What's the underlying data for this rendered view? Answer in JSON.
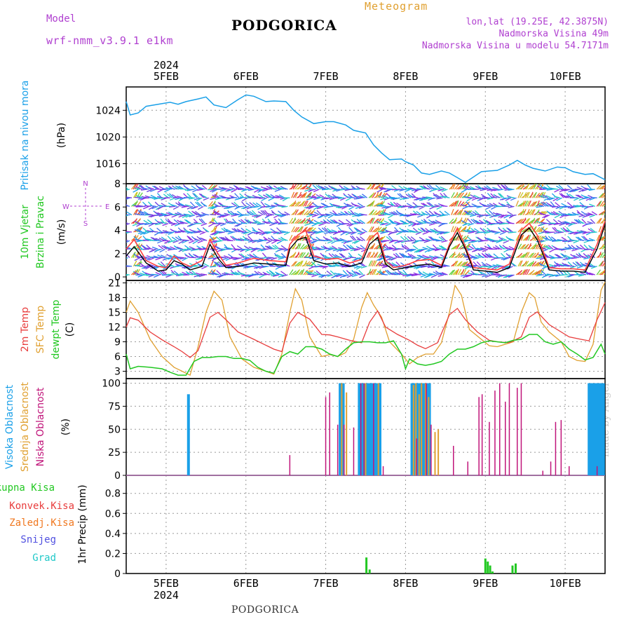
{
  "header": {
    "model_label": "Model",
    "model_name": "wrf-nmm_v3.9.1 e1km",
    "station": "PODGORICA",
    "product": "Meteogram",
    "lonlat": "lon,lat (19.25E, 42.3875N)",
    "elevation": "Nadmorska Visina 49m",
    "model_elevation": "Nadmorska Visina u modelu 54.7171m",
    "footer_station": "PODGORICA",
    "credit": "made by Angel"
  },
  "colors": {
    "pressure": "#1aa0e8",
    "t2m": "#e83c3c",
    "sfc": "#e0a030",
    "dewpt": "#22c822",
    "high": "#1aa0e8",
    "mid": "#e0a030",
    "low": "#c0147a",
    "total": "#22c822",
    "conv": "#e83c3c",
    "frozen": "#f07820",
    "snow": "#5050e0",
    "hail": "#20c8c8",
    "magenta": "#b040d0"
  },
  "chart_data": [
    {
      "type": "line",
      "panel": "pressure",
      "title": "",
      "ylabel": "Pritisak na nivou mora",
      "unit": "(hPa)",
      "ylim": [
        1013,
        1027.5
      ],
      "yticks": [
        1016,
        1020,
        1024
      ],
      "x_year_label": "2024",
      "x_tick_labels": [
        "5FEB",
        "6FEB",
        "7FEB",
        "8FEB",
        "9FEB",
        "10FEB"
      ],
      "series": [
        {
          "x": [
            4.5,
            4.55,
            4.65,
            4.75,
            4.9,
            5.05,
            5.15,
            5.25,
            5.4,
            5.5,
            5.6,
            5.75,
            5.9,
            6.0,
            6.1,
            6.25,
            6.35,
            6.5,
            6.6,
            6.7,
            6.85,
            7.0,
            7.1,
            7.25,
            7.35,
            7.5,
            7.6,
            7.7,
            7.8,
            7.95,
            8.0,
            8.1,
            8.2,
            8.3,
            8.45,
            8.55,
            8.65,
            8.75,
            8.85,
            8.95,
            9.05,
            9.15,
            9.3,
            9.4,
            9.5,
            9.6,
            9.75,
            9.9,
            10.0,
            10.1,
            10.25,
            10.35,
            10.5
          ],
          "y": [
            1025.3,
            1023.3,
            1023.6,
            1024.6,
            1024.9,
            1025.2,
            1024.9,
            1025.3,
            1025.7,
            1026.0,
            1024.8,
            1024.4,
            1025.6,
            1026.3,
            1026.1,
            1025.3,
            1025.4,
            1025.3,
            1024.0,
            1023.0,
            1022.0,
            1022.3,
            1022.3,
            1021.8,
            1021.0,
            1020.6,
            1018.8,
            1017.6,
            1016.6,
            1016.7,
            1016.3,
            1015.8,
            1014.6,
            1014.4,
            1014.9,
            1014.6,
            1013.9,
            1013.2,
            1014.0,
            1014.8,
            1014.9,
            1015.0,
            1015.8,
            1016.5,
            1015.8,
            1015.3,
            1014.9,
            1015.5,
            1015.4,
            1014.8,
            1014.4,
            1014.5,
            1013.6
          ]
        }
      ]
    },
    {
      "type": "line",
      "panel": "wind",
      "ylabel_1": "10m Vjetar",
      "ylabel_2": "Brzina i Pravac",
      "unit": "(m/s)",
      "ylim": [
        -0.3,
        8
      ],
      "yticks": [
        0,
        2,
        4,
        6,
        8
      ],
      "compass": {
        "n": "N",
        "e": "E",
        "w": "W",
        "s": "S"
      },
      "series": [
        {
          "x": [
            4.5,
            4.6,
            4.75,
            4.9,
            5.0,
            5.1,
            5.2,
            5.3,
            5.45,
            5.55,
            5.65,
            5.75,
            5.9,
            6.1,
            6.3,
            6.5,
            6.55,
            6.65,
            6.75,
            6.85,
            7.0,
            7.15,
            7.3,
            7.45,
            7.55,
            7.65,
            7.75,
            7.85,
            8.0,
            8.15,
            8.3,
            8.45,
            8.55,
            8.65,
            8.75,
            8.85,
            9.0,
            9.15,
            9.3,
            9.45,
            9.55,
            9.65,
            9.8,
            9.95,
            10.1,
            10.25,
            10.4,
            10.5
          ],
          "y": [
            1.8,
            2.6,
            1.2,
            0.5,
            0.6,
            1.4,
            1.1,
            0.6,
            0.9,
            2.8,
            1.6,
            0.8,
            0.9,
            1.2,
            1.1,
            1.0,
            2.4,
            3.2,
            3.4,
            1.4,
            1.1,
            1.2,
            0.9,
            1.2,
            2.8,
            3.4,
            1.1,
            0.6,
            0.8,
            1.0,
            1.1,
            0.8,
            2.6,
            3.8,
            2.4,
            0.6,
            0.5,
            0.4,
            0.8,
            3.6,
            4.2,
            3.2,
            0.6,
            0.5,
            0.5,
            0.4,
            2.4,
            4.5
          ]
        },
        {
          "x": [
            4.5,
            4.6,
            4.75,
            4.9,
            5.0,
            5.1,
            5.2,
            5.3,
            5.45,
            5.55,
            5.65,
            5.75,
            5.9,
            6.1,
            6.3,
            6.5,
            6.55,
            6.65,
            6.75,
            6.85,
            7.0,
            7.15,
            7.3,
            7.45,
            7.55,
            7.65,
            7.75,
            7.85,
            8.0,
            8.15,
            8.3,
            8.45,
            8.55,
            8.65,
            8.75,
            8.85,
            9.0,
            9.15,
            9.3,
            9.45,
            9.55,
            9.65,
            9.8,
            9.95,
            10.1,
            10.25,
            10.4,
            10.5
          ],
          "y": [
            2.4,
            3.2,
            1.4,
            0.9,
            0.8,
            1.8,
            1.2,
            0.9,
            1.4,
            3.2,
            2.0,
            1.0,
            1.2,
            1.6,
            1.4,
            1.3,
            2.8,
            3.6,
            4.0,
            1.8,
            1.5,
            1.6,
            1.2,
            1.5,
            3.2,
            3.8,
            1.4,
            0.8,
            1.0,
            1.4,
            1.5,
            1.0,
            2.8,
            4.2,
            2.6,
            0.8,
            0.7,
            0.6,
            1.1,
            4.0,
            4.6,
            3.6,
            0.8,
            0.7,
            0.7,
            0.6,
            2.8,
            4.8
          ]
        }
      ]
    },
    {
      "type": "line",
      "panel": "temperature",
      "ylabel_1": "2m Temp",
      "ylabel_2": "SFC Temp",
      "ylabel_3": "dewpt Temp",
      "unit": "(C)",
      "ylim": [
        1.5,
        21.5
      ],
      "yticks": [
        3,
        6,
        9,
        12,
        15,
        18,
        21
      ],
      "series": [
        {
          "name": "2m Temp",
          "x": [
            4.5,
            4.55,
            4.65,
            4.8,
            4.95,
            5.1,
            5.2,
            5.3,
            5.4,
            5.55,
            5.65,
            5.75,
            5.9,
            6.1,
            6.25,
            6.35,
            6.45,
            6.55,
            6.65,
            6.8,
            6.95,
            7.05,
            7.15,
            7.3,
            7.45,
            7.55,
            7.65,
            7.75,
            7.9,
            8.05,
            8.15,
            8.25,
            8.4,
            8.55,
            8.65,
            8.75,
            8.9,
            9.05,
            9.15,
            9.3,
            9.45,
            9.55,
            9.65,
            9.8,
            9.95,
            10.05,
            10.2,
            10.3,
            10.4,
            10.5
          ],
          "y": [
            12.0,
            13.9,
            13.4,
            11.0,
            9.4,
            8.0,
            7.0,
            5.8,
            7.2,
            14.0,
            15.0,
            13.5,
            11.0,
            9.5,
            8.3,
            7.5,
            7.0,
            12.8,
            15.0,
            13.6,
            10.5,
            10.4,
            10.0,
            9.3,
            8.8,
            13.0,
            15.3,
            12.0,
            10.5,
            9.3,
            8.3,
            7.6,
            8.8,
            14.5,
            15.8,
            13.5,
            11.0,
            9.3,
            9.0,
            8.8,
            10.0,
            14.0,
            15.1,
            12.5,
            11.0,
            10.0,
            9.5,
            9.2,
            13.5,
            17.0
          ]
        },
        {
          "name": "SFC Temp",
          "x": [
            4.5,
            4.55,
            4.65,
            4.8,
            4.95,
            5.1,
            5.2,
            5.3,
            5.4,
            5.5,
            5.6,
            5.7,
            5.8,
            5.95,
            6.1,
            6.25,
            6.35,
            6.45,
            6.55,
            6.62,
            6.7,
            6.8,
            6.95,
            7.05,
            7.15,
            7.25,
            7.35,
            7.45,
            7.52,
            7.6,
            7.7,
            7.8,
            7.95,
            8.05,
            8.15,
            8.25,
            8.35,
            8.45,
            8.55,
            8.62,
            8.7,
            8.8,
            8.95,
            9.05,
            9.15,
            9.25,
            9.35,
            9.45,
            9.55,
            9.62,
            9.7,
            9.8,
            9.95,
            10.05,
            10.15,
            10.25,
            10.35,
            10.45,
            10.5
          ],
          "y": [
            15.0,
            17.3,
            15.0,
            9.5,
            6.0,
            3.8,
            3.0,
            2.2,
            8.0,
            15.0,
            19.3,
            17.5,
            10.0,
            5.5,
            3.8,
            3.0,
            2.4,
            6.5,
            15.0,
            19.8,
            17.5,
            10.0,
            6.0,
            6.4,
            6.0,
            6.8,
            9.5,
            16.0,
            19.0,
            16.5,
            14.0,
            9.0,
            6.5,
            4.5,
            5.8,
            6.5,
            6.5,
            8.8,
            15.0,
            20.5,
            18.5,
            11.5,
            9.5,
            8.2,
            8.0,
            8.5,
            9.0,
            15.0,
            19.0,
            18.0,
            13.0,
            11.0,
            9.0,
            6.0,
            5.2,
            5.0,
            8.5,
            19.5,
            21.2
          ]
        },
        {
          "name": "dewpt Temp",
          "x": [
            4.5,
            4.55,
            4.65,
            4.8,
            4.95,
            5.05,
            5.15,
            5.25,
            5.35,
            5.45,
            5.55,
            5.65,
            5.75,
            5.85,
            5.95,
            6.05,
            6.15,
            6.25,
            6.35,
            6.45,
            6.55,
            6.65,
            6.75,
            6.85,
            6.95,
            7.05,
            7.15,
            7.25,
            7.35,
            7.45,
            7.55,
            7.65,
            7.75,
            7.85,
            7.95,
            8.0,
            8.05,
            8.15,
            8.25,
            8.35,
            8.45,
            8.55,
            8.65,
            8.75,
            8.85,
            8.95,
            9.05,
            9.15,
            9.25,
            9.35,
            9.45,
            9.55,
            9.65,
            9.75,
            9.85,
            9.95,
            10.05,
            10.15,
            10.25,
            10.35,
            10.45,
            10.5
          ],
          "y": [
            6.5,
            3.5,
            4.0,
            3.8,
            3.5,
            2.8,
            2.2,
            2.2,
            5.0,
            5.8,
            5.8,
            6.0,
            6.0,
            5.6,
            5.6,
            5.2,
            3.8,
            3.0,
            2.6,
            6.0,
            7.0,
            6.5,
            8.0,
            8.0,
            7.5,
            6.5,
            6.0,
            7.5,
            8.8,
            9.0,
            9.0,
            8.8,
            8.8,
            9.2,
            6.5,
            3.5,
            5.5,
            4.5,
            4.2,
            4.5,
            5.0,
            6.5,
            7.5,
            7.5,
            8.0,
            8.8,
            9.2,
            9.0,
            8.8,
            9.3,
            9.5,
            10.5,
            10.5,
            9.0,
            8.5,
            9.0,
            7.5,
            6.5,
            5.3,
            5.8,
            8.5,
            6.5
          ]
        }
      ]
    },
    {
      "type": "bar",
      "panel": "clouds",
      "ylabel_1": "Visoka Oblacnost",
      "ylabel_2": "Srednja Oblacnost",
      "ylabel_3": "Niska Oblacnost",
      "unit": "(%)",
      "ylim": [
        0,
        105
      ],
      "yticks": [
        0,
        25,
        50,
        75,
        100
      ],
      "series": [
        {
          "name": "Visoka Oblacnost",
          "x": [
            5.28,
            7.18,
            7.2,
            7.22,
            7.42,
            7.44,
            7.46,
            7.48,
            7.5,
            7.52,
            7.54,
            7.56,
            7.58,
            7.6,
            7.62,
            7.64,
            7.68,
            8.08,
            8.1,
            8.12,
            8.14,
            8.16,
            8.18,
            8.2,
            8.22,
            8.24,
            8.26,
            8.28,
            8.3,
            10.3,
            10.32,
            10.34,
            10.36,
            10.38,
            10.4,
            10.42,
            10.44,
            10.46,
            10.48
          ],
          "y": [
            88,
            100,
            100,
            100,
            100,
            100,
            100,
            100,
            100,
            100,
            100,
            100,
            100,
            100,
            100,
            100,
            100,
            100,
            100,
            100,
            100,
            100,
            100,
            100,
            100,
            100,
            100,
            100,
            100,
            100,
            100,
            100,
            100,
            100,
            100,
            100,
            100,
            100,
            100
          ]
        },
        {
          "name": "Srednja Oblacnost",
          "x": [
            7.2,
            7.26,
            7.5,
            7.66,
            8.1,
            8.13,
            8.17,
            8.2,
            8.25,
            8.29,
            8.37,
            8.41
          ],
          "y": [
            100,
            90,
            100,
            100,
            98,
            100,
            88,
            100,
            100,
            85,
            47,
            50
          ]
        },
        {
          "name": "Niska Oblacnost",
          "x": [
            6.55,
            7.0,
            7.05,
            7.15,
            7.23,
            7.35,
            7.44,
            7.48,
            7.6,
            7.72,
            8.14,
            8.26,
            8.32,
            8.6,
            8.78,
            8.92,
            8.96,
            9.05,
            9.12,
            9.18,
            9.25,
            9.3,
            9.4,
            9.45,
            9.72,
            9.82,
            9.88,
            9.95,
            10.05,
            10.4
          ],
          "y": [
            22,
            85,
            90,
            55,
            55,
            52,
            100,
            100,
            100,
            10,
            40,
            100,
            55,
            32,
            15,
            85,
            88,
            58,
            92,
            100,
            80,
            100,
            95,
            100,
            5,
            15,
            58,
            60,
            10,
            10
          ]
        }
      ]
    },
    {
      "type": "bar",
      "panel": "precip",
      "ylabel_1": "1hr Precip (mm)",
      "ylim": [
        0,
        0.98
      ],
      "yticks": [
        0,
        0.2,
        0.4,
        0.6,
        0.8
      ],
      "legend": [
        "Ukupna Kisa",
        "Konvek.Kisa",
        "Zaledj.Kisa",
        "Snijeg",
        "Grad"
      ],
      "series": [
        {
          "name": "Ukupna Kisa",
          "x": [
            7.51,
            7.55,
            9.0,
            9.03,
            9.06,
            9.09,
            9.34,
            9.38
          ],
          "y": [
            0.16,
            0.04,
            0.15,
            0.12,
            0.08,
            0.02,
            0.08,
            0.1
          ]
        }
      ],
      "x_tick_labels": [
        "5FEB",
        "6FEB",
        "7FEB",
        "8FEB",
        "9FEB",
        "10FEB"
      ],
      "x_year_label": "2024"
    }
  ]
}
